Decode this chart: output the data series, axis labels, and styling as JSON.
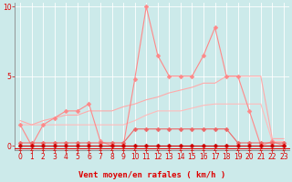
{
  "bg_color": "#cceaea",
  "grid_color": "#b0d8d8",
  "line_color_dark": "#dd0000",
  "xlabel": "Vent moyen/en rafales ( km/h )",
  "xlim": [
    -0.5,
    23.5
  ],
  "ylim": [
    -0.3,
    10.3
  ],
  "yticks": [
    0,
    5,
    10
  ],
  "xticks": [
    0,
    1,
    2,
    3,
    4,
    5,
    6,
    7,
    8,
    9,
    10,
    11,
    12,
    13,
    14,
    15,
    16,
    17,
    18,
    19,
    20,
    21,
    22,
    23
  ],
  "series": [
    {
      "x": [
        0,
        1,
        2,
        3,
        4,
        5,
        6,
        7,
        8,
        9,
        10,
        11,
        12,
        13,
        14,
        15,
        16,
        17,
        18,
        19,
        20,
        21,
        22,
        23
      ],
      "y": [
        0,
        0,
        0,
        0,
        0,
        0,
        0,
        0,
        0,
        0,
        0,
        0,
        0,
        0,
        0,
        0,
        0,
        0,
        0,
        0,
        0,
        0,
        0,
        0
      ],
      "color": "#cc0000",
      "marker": "D",
      "markersize": 2.5,
      "lw": 0.8,
      "zorder": 6
    },
    {
      "x": [
        0,
        1,
        2,
        3,
        4,
        5,
        6,
        7,
        8,
        9,
        10,
        11,
        12,
        13,
        14,
        15,
        16,
        17,
        18,
        19,
        20,
        21,
        22,
        23
      ],
      "y": [
        0.2,
        0.2,
        0.2,
        0.2,
        0.2,
        0.2,
        0.2,
        0.2,
        0.2,
        0.2,
        1.2,
        1.2,
        1.2,
        1.2,
        1.2,
        1.2,
        1.2,
        1.2,
        1.2,
        0.2,
        0.2,
        0.2,
        0.2,
        0.2
      ],
      "color": "#ee6666",
      "marker": "D",
      "markersize": 2.5,
      "lw": 0.8,
      "zorder": 5
    },
    {
      "x": [
        0,
        1,
        2,
        3,
        4,
        5,
        6,
        7,
        8,
        9,
        10,
        11,
        12,
        13,
        14,
        15,
        16,
        17,
        18,
        19,
        20,
        21,
        22,
        23
      ],
      "y": [
        1.5,
        1.5,
        1.5,
        1.5,
        1.5,
        1.5,
        1.5,
        1.5,
        1.5,
        1.5,
        1.8,
        2.2,
        2.5,
        2.5,
        2.5,
        2.7,
        2.9,
        3.0,
        3.0,
        3.0,
        3.0,
        3.0,
        0.3,
        0.3
      ],
      "color": "#ffbbbb",
      "marker": null,
      "markersize": 0,
      "lw": 0.8,
      "zorder": 2
    },
    {
      "x": [
        0,
        1,
        2,
        3,
        4,
        5,
        6,
        7,
        8,
        9,
        10,
        11,
        12,
        13,
        14,
        15,
        16,
        17,
        18,
        19,
        20,
        21,
        22,
        23
      ],
      "y": [
        1.8,
        1.5,
        1.8,
        2.0,
        2.2,
        2.2,
        2.5,
        2.5,
        2.5,
        2.8,
        3.0,
        3.3,
        3.5,
        3.8,
        4.0,
        4.2,
        4.5,
        4.5,
        5.0,
        5.0,
        5.0,
        5.0,
        0.5,
        0.5
      ],
      "color": "#ffaaaa",
      "marker": null,
      "markersize": 0,
      "lw": 0.8,
      "zorder": 3
    },
    {
      "x": [
        0,
        1,
        2,
        3,
        4,
        5,
        6,
        7,
        8,
        9,
        10,
        11,
        12,
        13,
        14,
        15,
        16,
        17,
        18,
        19,
        20,
        21,
        22,
        23
      ],
      "y": [
        1.5,
        0,
        1.5,
        2.0,
        2.5,
        2.5,
        3.0,
        0.3,
        0,
        0,
        4.8,
        10.0,
        6.5,
        5.0,
        5.0,
        5.0,
        6.5,
        8.5,
        5.0,
        5.0,
        2.5,
        0,
        0.3,
        0
      ],
      "color": "#ff8888",
      "marker": "D",
      "markersize": 2.5,
      "lw": 0.8,
      "zorder": 4
    }
  ],
  "xlabel_fontsize": 6.5,
  "tick_fontsize": 5.5,
  "arrow_angles": [
    200,
    200,
    200,
    200,
    200,
    200,
    200,
    200,
    200,
    200,
    200,
    210,
    220,
    210,
    210,
    210,
    210,
    210,
    210,
    210,
    210,
    215,
    220,
    225
  ]
}
